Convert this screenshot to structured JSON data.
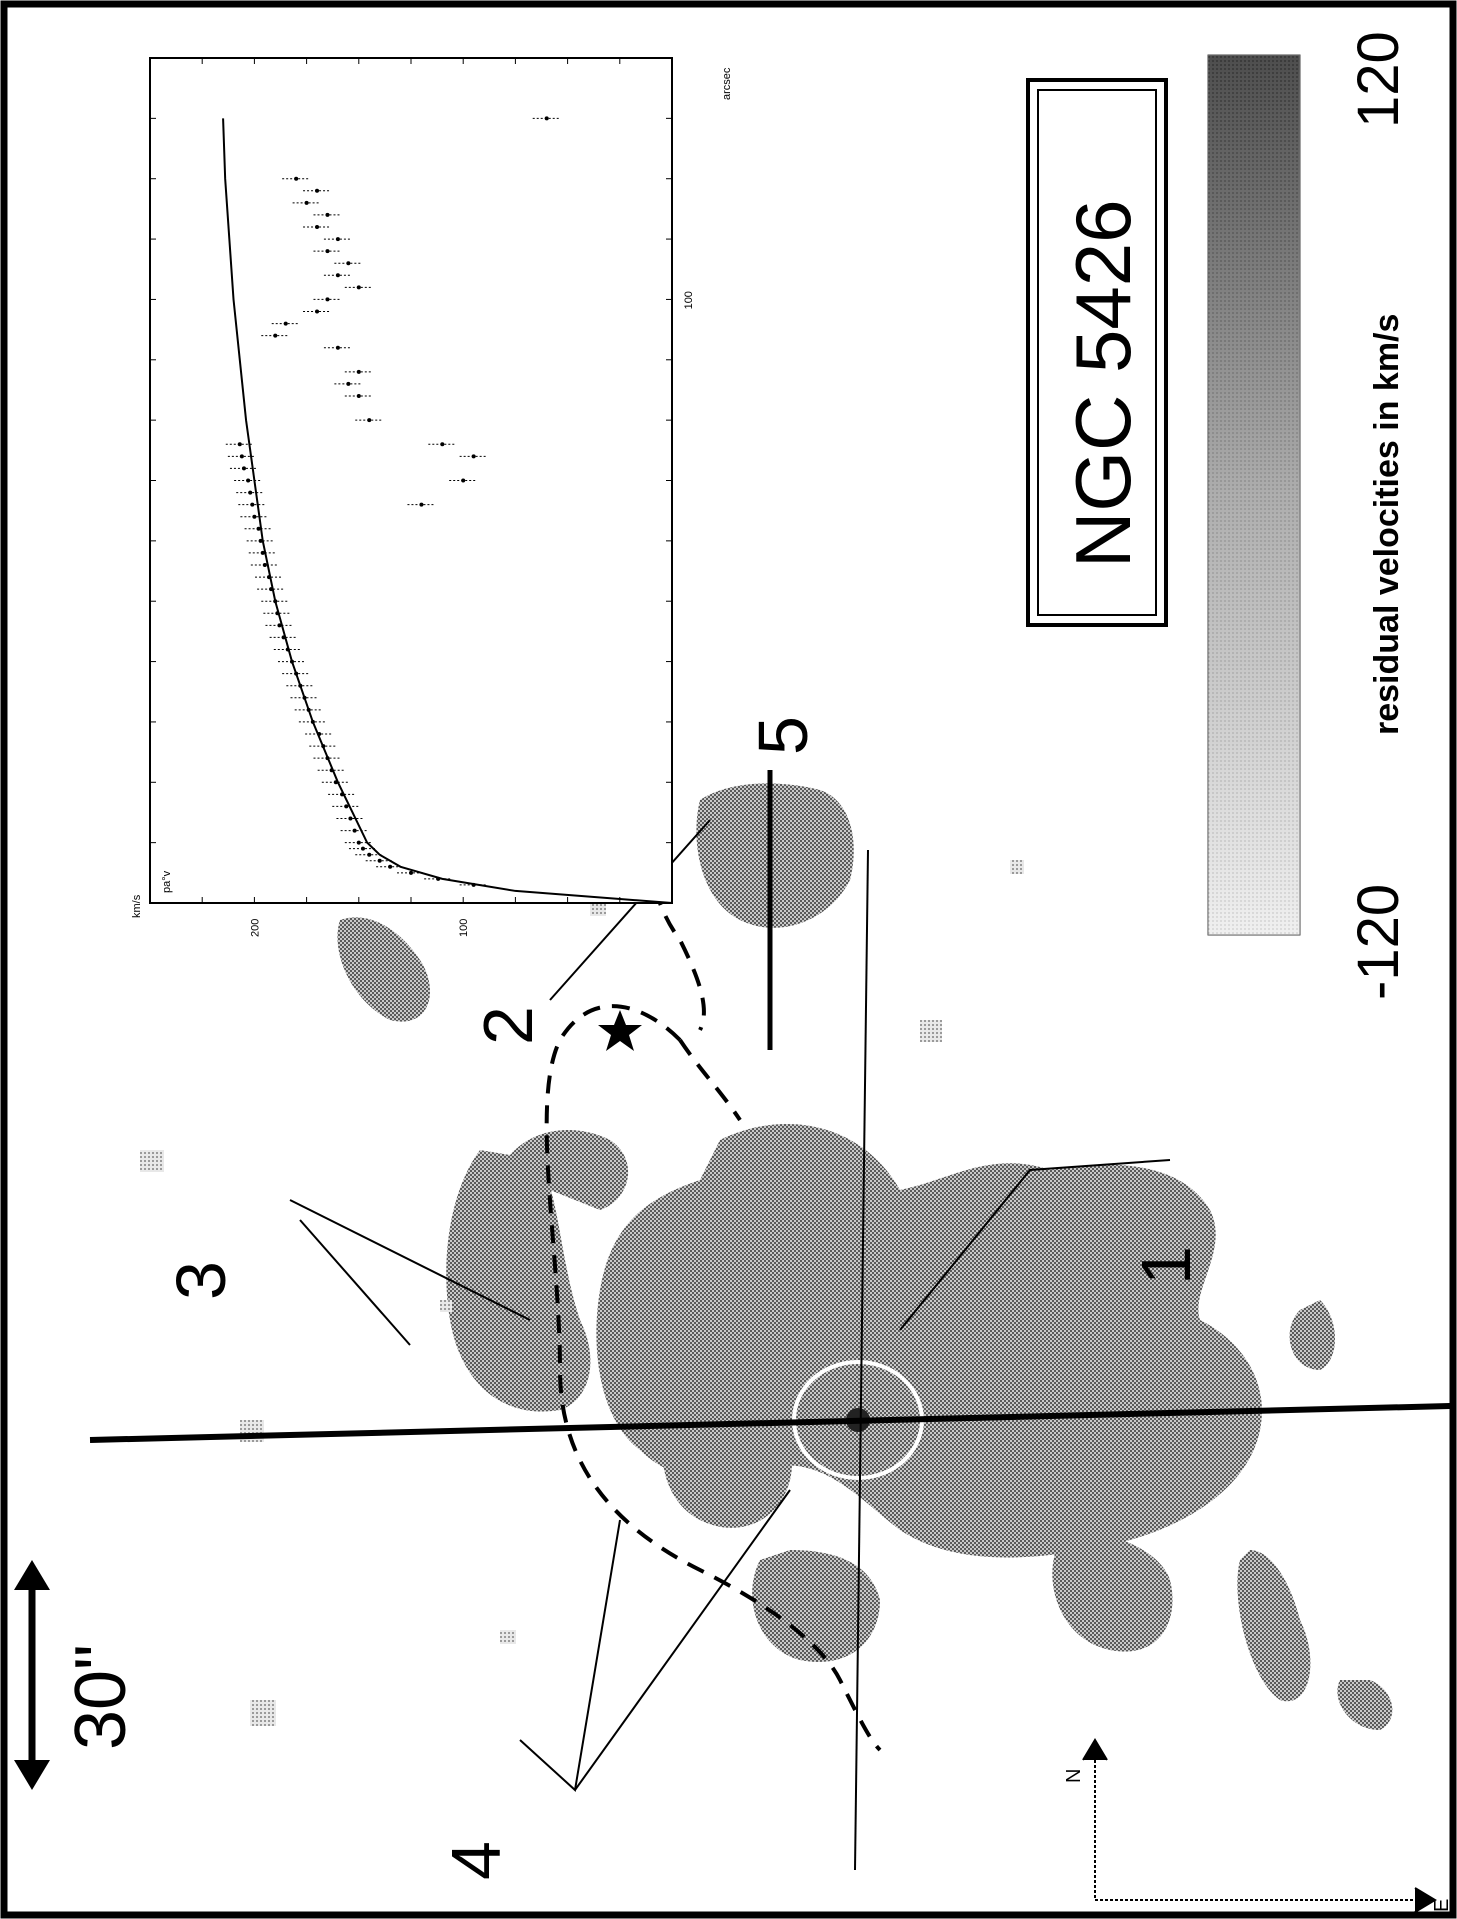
{
  "figure": {
    "title": "NGC 5426",
    "scale_bar_label": "30\"",
    "compass": {
      "north": "N",
      "east": "E"
    },
    "arm_labels": [
      "1",
      "2",
      "3",
      "4",
      "5"
    ],
    "colorbar": {
      "label": "residual velocities in km/s",
      "min_label": "-120",
      "max_label": "120"
    },
    "colors": {
      "frame": "#000000",
      "background": "#ffffff",
      "emission_gray": "#8c8c8c",
      "circle": "#ffffff"
    }
  },
  "chart_data": {
    "type": "scatter",
    "title": "",
    "xlabel": "arcsec",
    "ylabel": "km/s",
    "panel_tag": "pa°v",
    "x_tick_labels": [
      "100"
    ],
    "y_tick_labels": [
      "200",
      "100"
    ],
    "xlim": [
      0,
      140
    ],
    "ylim": [
      0,
      250
    ],
    "series": [
      {
        "type": "line",
        "x": [
          0,
          2,
          4,
          6,
          8,
          10,
          15,
          20,
          25,
          30,
          40,
          50,
          60,
          70,
          80,
          90,
          100,
          110,
          120,
          130
        ],
        "y": [
          0,
          75,
          110,
          130,
          140,
          146,
          153,
          160,
          166,
          172,
          182,
          190,
          196,
          200,
          204,
          207,
          210,
          212,
          214,
          215
        ]
      },
      {
        "type": "scatter",
        "x": [
          3,
          4,
          5,
          6,
          7,
          8,
          9,
          10,
          12,
          14,
          16,
          18,
          20,
          22,
          24,
          26,
          28,
          30,
          32,
          34,
          36,
          38,
          40,
          42,
          44,
          46,
          48,
          50,
          52,
          54,
          56,
          58,
          60,
          62,
          64,
          66,
          68,
          70,
          72,
          74,
          76
        ],
        "y": [
          95,
          112,
          125,
          135,
          140,
          145,
          148,
          150,
          152,
          154,
          156,
          158,
          161,
          163,
          165,
          167,
          169,
          172,
          174,
          176,
          178,
          180,
          182,
          184,
          186,
          188,
          189,
          190,
          192,
          193,
          195,
          196,
          197,
          198,
          200,
          201,
          202,
          203,
          205,
          206,
          207
        ]
      },
      {
        "type": "scatter",
        "x": [
          66,
          70,
          74,
          76,
          80,
          84,
          86,
          88,
          92,
          94,
          96,
          98,
          100,
          102,
          104,
          106,
          108,
          110,
          112,
          114,
          116,
          118,
          120
        ],
        "y": [
          120,
          100,
          95,
          110,
          145,
          150,
          155,
          150,
          160,
          190,
          185,
          170,
          165,
          150,
          160,
          155,
          165,
          160,
          170,
          165,
          175,
          170,
          180
        ]
      },
      {
        "type": "scatter",
        "x": [
          130
        ],
        "y": [
          60
        ]
      }
    ],
    "grid": false
  }
}
